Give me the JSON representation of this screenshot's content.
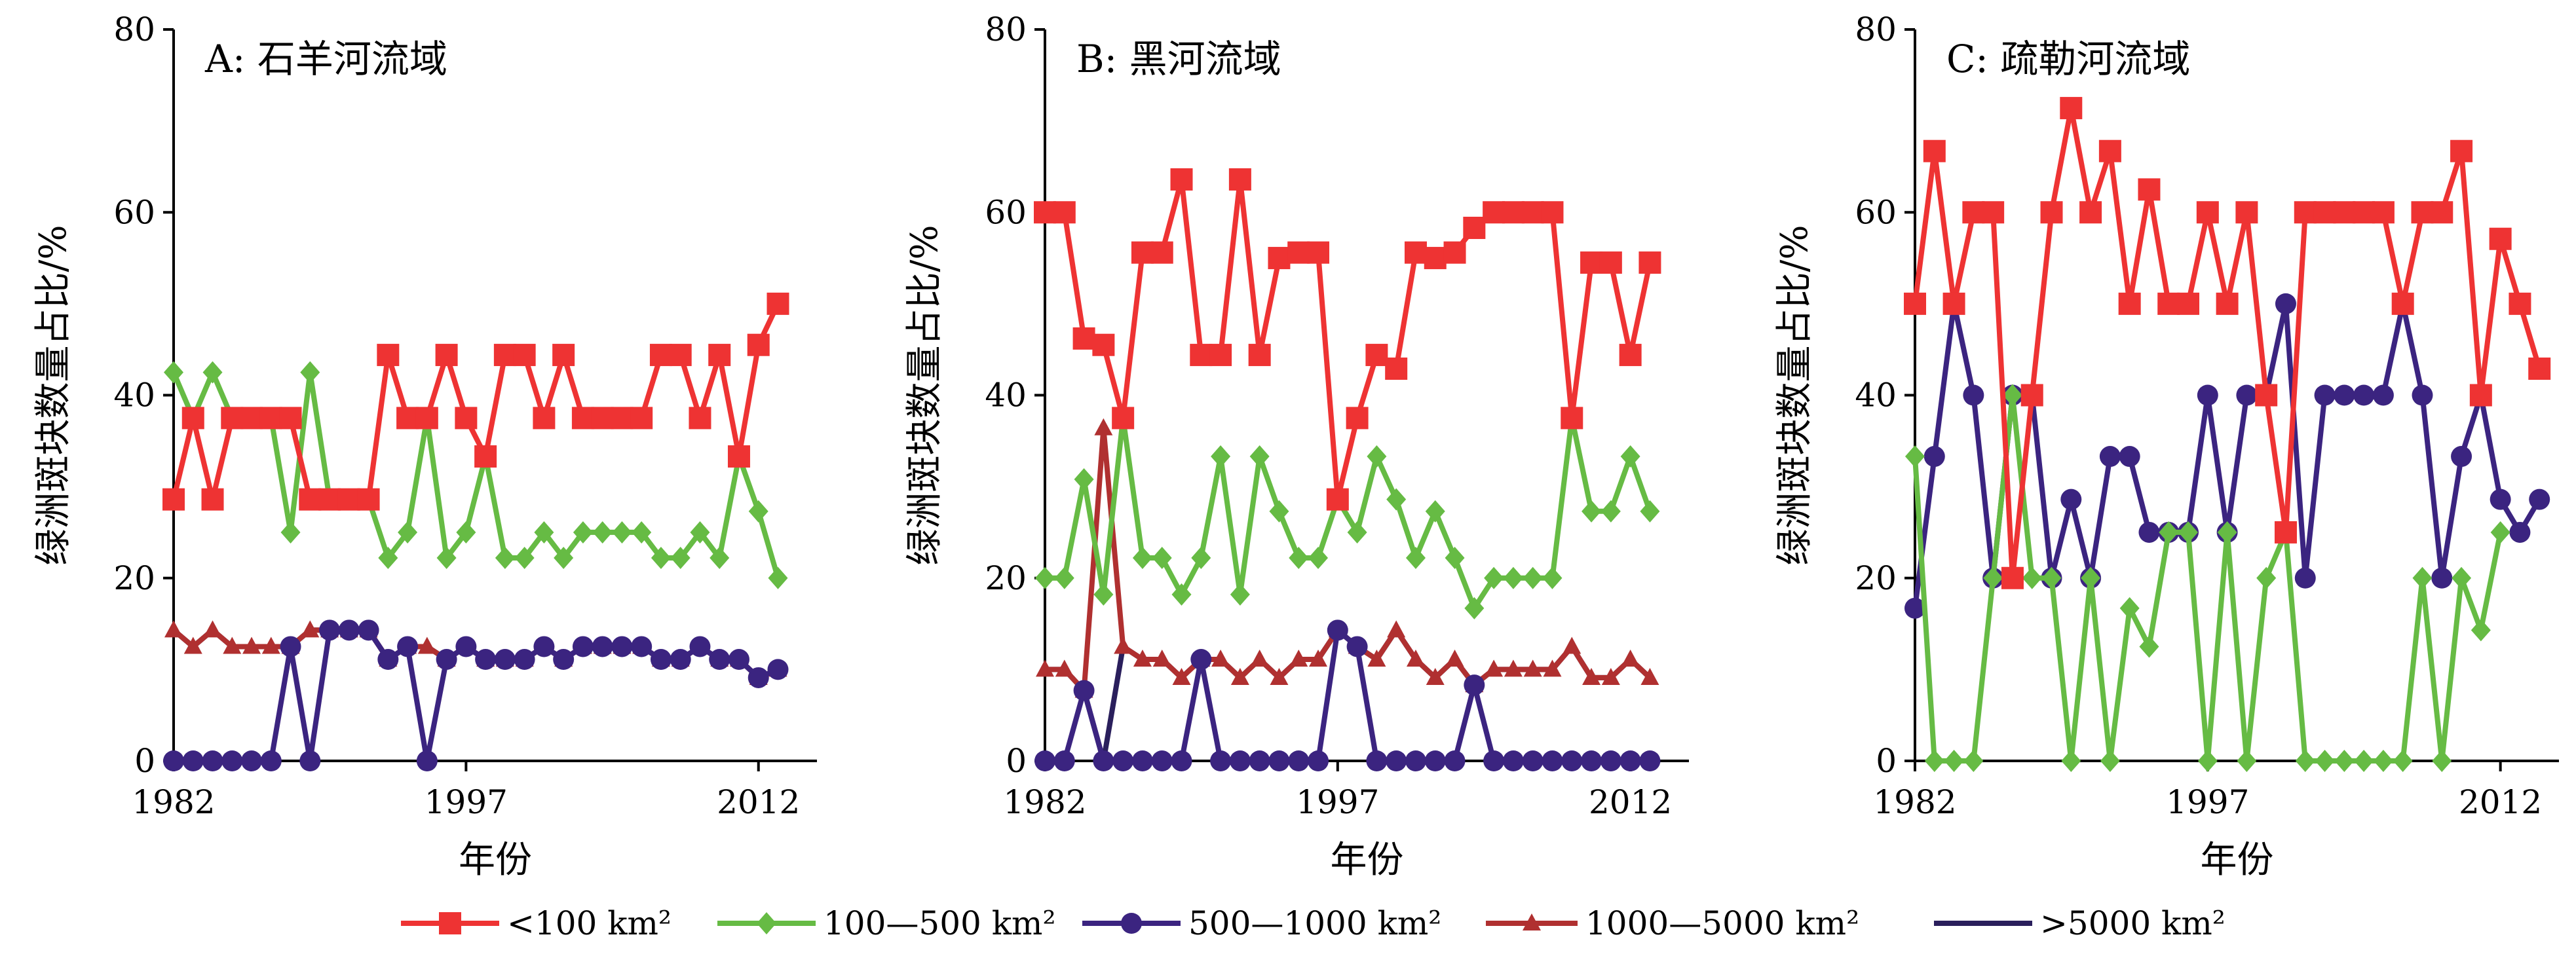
{
  "legend": [
    {
      "label": "<100 km²",
      "color": "#ee3333",
      "marker": "square"
    },
    {
      "label": "100—500 km²",
      "color": "#66bb44",
      "marker": "diamond"
    },
    {
      "label": "500—1000 km²",
      "color": "#3b2480",
      "marker": "circle"
    },
    {
      "label": "1000—5000 km²",
      "color": "#b03030",
      "marker": "triangle"
    },
    {
      "label": ">5000 km²",
      "color": "#2a1f5c",
      "marker": "none"
    }
  ],
  "chart_data": [
    {
      "type": "line",
      "title": "A: 石羊河流域",
      "xlabel": "年份",
      "ylabel": "绿洲斑块数量占比/%",
      "xlim": [
        1982,
        2015
      ],
      "ylim": [
        0,
        80
      ],
      "xticks": [
        1982,
        1997,
        2012
      ],
      "yticks": [
        0,
        20,
        40,
        60,
        80
      ],
      "x": [
        1982,
        1983,
        1984,
        1985,
        1986,
        1987,
        1988,
        1989,
        1990,
        1991,
        1992,
        1993,
        1994,
        1995,
        1996,
        1997,
        1998,
        1999,
        2000,
        2001,
        2002,
        2003,
        2004,
        2005,
        2006,
        2007,
        2008,
        2009,
        2010,
        2011,
        2012,
        2013,
        2014
      ],
      "series": [
        {
          "name": "<100 km²",
          "values": [
            28.6,
            37.5,
            28.6,
            37.5,
            37.5,
            37.5,
            37.5,
            28.6,
            28.6,
            28.6,
            28.6,
            44.4,
            37.5,
            37.5,
            44.4,
            37.5,
            33.3,
            44.4,
            44.4,
            37.5,
            44.4,
            37.5,
            37.5,
            37.5,
            37.5,
            44.4,
            44.4,
            37.5,
            44.4,
            33.3,
            45.5,
            50.0,
            null
          ]
        },
        {
          "name": "100—500 km²",
          "values": [
            42.5,
            37.5,
            42.5,
            37.5,
            37.5,
            37.5,
            25.0,
            42.5,
            28.6,
            28.6,
            28.6,
            22.2,
            25.0,
            37.5,
            22.2,
            25.0,
            33.3,
            22.2,
            22.2,
            25.0,
            22.2,
            25.0,
            25.0,
            25.0,
            25.0,
            22.2,
            22.2,
            25.0,
            22.2,
            33.3,
            27.3,
            20.0,
            null
          ]
        },
        {
          "name": "500—1000 km²",
          "values": [
            0,
            0,
            0,
            0,
            0,
            0,
            12.5,
            0,
            14.3,
            14.3,
            14.3,
            11.1,
            12.5,
            0,
            11.1,
            12.5,
            11.1,
            11.1,
            11.1,
            12.5,
            11.1,
            12.5,
            12.5,
            12.5,
            12.5,
            11.1,
            11.1,
            12.5,
            11.1,
            11.1,
            9.1,
            10.0,
            null
          ]
        },
        {
          "name": "1000—5000 km²",
          "values": [
            14.3,
            12.5,
            14.3,
            12.5,
            12.5,
            12.5,
            12.5,
            14.3,
            14.3,
            14.3,
            14.3,
            11.1,
            12.5,
            12.5,
            11.1,
            12.5,
            11.1,
            11.1,
            11.1,
            12.5,
            11.1,
            12.5,
            12.5,
            12.5,
            12.5,
            11.1,
            11.1,
            12.5,
            11.1,
            11.1,
            9.1,
            10.0,
            null
          ]
        },
        {
          "name": ">5000 km²",
          "values": [
            14.3,
            12.5,
            14.3,
            12.5,
            12.5,
            12.5,
            12.5,
            14.3,
            14.3,
            14.3,
            14.3,
            11.1,
            12.5,
            12.5,
            11.1,
            12.5,
            11.1,
            11.1,
            11.1,
            12.5,
            11.1,
            12.5,
            12.5,
            12.5,
            12.5,
            11.1,
            11.1,
            12.5,
            11.1,
            11.1,
            9.1,
            10.0,
            null
          ]
        }
      ]
    },
    {
      "type": "line",
      "title": "B: 黑河流域",
      "xlabel": "年份",
      "ylabel": "绿洲斑块数量占比/%",
      "xlim": [
        1982,
        2015
      ],
      "ylim": [
        0,
        80
      ],
      "xticks": [
        1982,
        1997,
        2012
      ],
      "yticks": [
        0,
        20,
        40,
        60,
        80
      ],
      "x": [
        1982,
        1983,
        1984,
        1985,
        1986,
        1987,
        1988,
        1989,
        1990,
        1991,
        1992,
        1993,
        1994,
        1995,
        1996,
        1997,
        1998,
        1999,
        2000,
        2001,
        2002,
        2003,
        2004,
        2005,
        2006,
        2007,
        2008,
        2009,
        2010,
        2011,
        2012,
        2013,
        2014
      ],
      "series": [
        {
          "name": "<100 km²",
          "values": [
            60.0,
            60.0,
            46.2,
            45.5,
            37.5,
            55.6,
            55.6,
            63.6,
            44.4,
            44.4,
            63.6,
            44.4,
            55.0,
            55.6,
            55.6,
            28.6,
            37.5,
            44.4,
            42.9,
            55.6,
            55.0,
            55.6,
            58.3,
            60.0,
            60.0,
            60.0,
            60.0,
            37.5,
            54.5,
            54.5,
            44.4,
            54.5,
            null
          ]
        },
        {
          "name": "100—500 km²",
          "values": [
            20.0,
            20.0,
            30.8,
            18.2,
            37.5,
            22.2,
            22.2,
            18.2,
            22.2,
            33.3,
            18.2,
            33.3,
            27.3,
            22.2,
            22.2,
            28.6,
            25.0,
            33.3,
            28.6,
            22.2,
            27.3,
            22.2,
            16.7,
            20.0,
            20.0,
            20.0,
            20.0,
            37.5,
            27.3,
            27.3,
            33.3,
            27.3,
            null
          ]
        },
        {
          "name": "500—1000 km²",
          "values": [
            0,
            0,
            7.7,
            0,
            0,
            0,
            0,
            0,
            11.1,
            0,
            0,
            0,
            0,
            0,
            0,
            14.3,
            12.5,
            0,
            0,
            0,
            0,
            0,
            8.3,
            0,
            0,
            0,
            0,
            0,
            0,
            0,
            0,
            0,
            null
          ]
        },
        {
          "name": "1000—5000 km²",
          "values": [
            10.0,
            10.0,
            7.7,
            36.4,
            12.5,
            11.1,
            11.1,
            9.1,
            11.1,
            11.1,
            9.1,
            11.1,
            9.1,
            11.1,
            11.1,
            14.3,
            12.5,
            11.1,
            14.3,
            11.1,
            9.1,
            11.1,
            8.3,
            10.0,
            10.0,
            10.0,
            10.0,
            12.5,
            9.1,
            9.1,
            11.1,
            9.1,
            null
          ]
        },
        {
          "name": ">5000 km²",
          "values": [
            10.0,
            10.0,
            7.7,
            0,
            12.5,
            11.1,
            11.1,
            9.1,
            11.1,
            11.1,
            9.1,
            11.1,
            9.1,
            11.1,
            11.1,
            14.3,
            12.5,
            11.1,
            14.3,
            11.1,
            9.1,
            11.1,
            8.3,
            10.0,
            10.0,
            10.0,
            10.0,
            12.5,
            9.1,
            9.1,
            11.1,
            9.1,
            null
          ]
        }
      ]
    },
    {
      "type": "line",
      "title": "C: 疏勒河流域",
      "xlabel": "年份",
      "ylabel": "绿洲斑块数量占比/%",
      "xlim": [
        1982,
        2015
      ],
      "ylim": [
        0,
        80
      ],
      "xticks": [
        1982,
        1997,
        2012
      ],
      "yticks": [
        0,
        20,
        40,
        60,
        80
      ],
      "x": [
        1982,
        1983,
        1984,
        1985,
        1986,
        1987,
        1988,
        1989,
        1990,
        1991,
        1992,
        1993,
        1994,
        1995,
        1996,
        1997,
        1998,
        1999,
        2000,
        2001,
        2002,
        2003,
        2004,
        2005,
        2006,
        2007,
        2008,
        2009,
        2010,
        2011,
        2012,
        2013,
        2014
      ],
      "series": [
        {
          "name": "<100 km²",
          "values": [
            50.0,
            66.7,
            50.0,
            60.0,
            60.0,
            20.0,
            40.0,
            60.0,
            71.4,
            60.0,
            66.7,
            50.0,
            62.5,
            50.0,
            50.0,
            60.0,
            50.0,
            60.0,
            40.0,
            25.0,
            60.0,
            60.0,
            60.0,
            60.0,
            60.0,
            50.0,
            60.0,
            60.0,
            66.7,
            40.0,
            57.1,
            50.0,
            42.9
          ]
        },
        {
          "name": "100—500 km²",
          "values": [
            33.3,
            0,
            0,
            0,
            20.0,
            40.0,
            20.0,
            20.0,
            0,
            20.0,
            0,
            16.7,
            12.5,
            25.0,
            25.0,
            0,
            25.0,
            0,
            20.0,
            25.0,
            0,
            0,
            0,
            0,
            0,
            0,
            20.0,
            0,
            20.0,
            14.3,
            25.0,
            null,
            null
          ]
        },
        {
          "name": "500—1000 km²",
          "values": [
            16.7,
            33.3,
            50.0,
            40.0,
            20.0,
            40.0,
            40.0,
            20.0,
            28.6,
            20.0,
            33.3,
            33.3,
            25.0,
            25.0,
            25.0,
            40.0,
            25.0,
            40.0,
            40.0,
            50.0,
            20.0,
            40.0,
            40.0,
            40.0,
            40.0,
            50.0,
            40.0,
            20.0,
            33.3,
            40.0,
            28.6,
            25.0,
            28.6
          ]
        }
      ]
    }
  ]
}
